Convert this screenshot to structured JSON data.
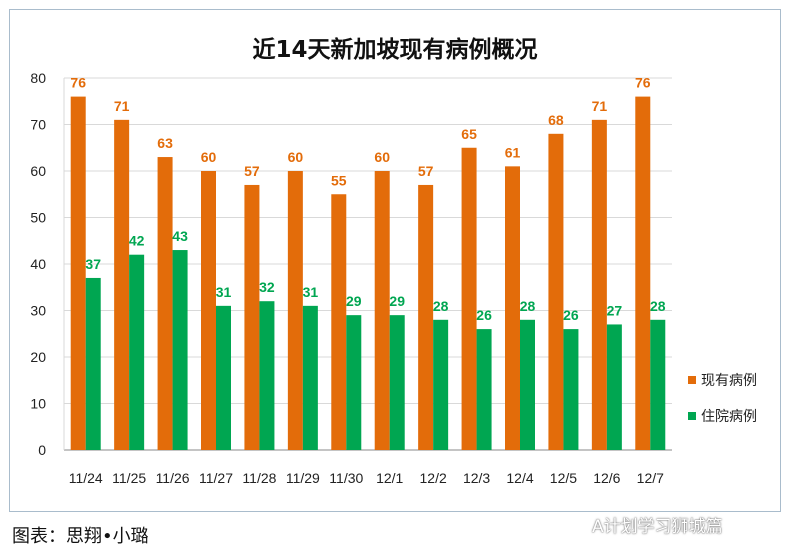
{
  "chart_data": {
    "type": "bar",
    "title": "近14天新加坡现有病例概况",
    "categories": [
      "11/24",
      "11/25",
      "11/26",
      "11/27",
      "11/28",
      "11/29",
      "11/30",
      "12/1",
      "12/2",
      "12/3",
      "12/4",
      "12/5",
      "12/6",
      "12/7"
    ],
    "series": [
      {
        "name": "现有病例",
        "color": "#e36c0a",
        "values": [
          76,
          71,
          63,
          60,
          57,
          60,
          55,
          60,
          57,
          65,
          61,
          68,
          71,
          76
        ]
      },
      {
        "name": "住院病例",
        "color": "#00a651",
        "values": [
          37,
          42,
          43,
          31,
          32,
          31,
          29,
          29,
          28,
          26,
          28,
          26,
          27,
          28
        ]
      }
    ],
    "ylim": [
      0,
      80
    ],
    "yticks": [
      0,
      10,
      20,
      30,
      40,
      50,
      60,
      70,
      80
    ],
    "grid": true,
    "legend": "right"
  },
  "caption": "图表：思翔•小璐",
  "watermark": "A计划学习狮城篇"
}
